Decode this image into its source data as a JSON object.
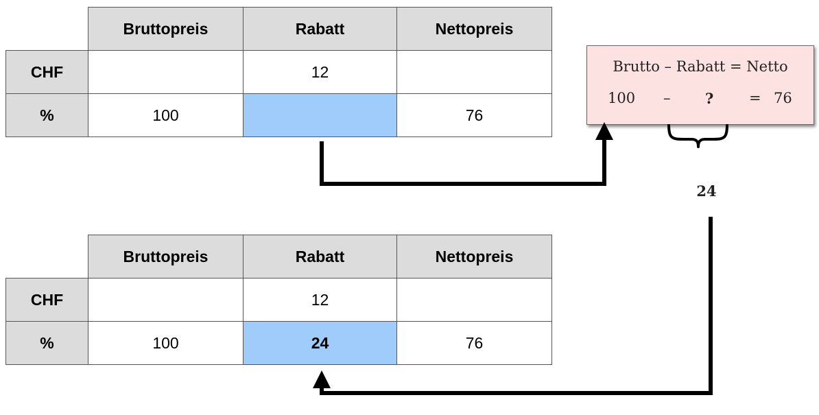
{
  "table_top": {
    "headers": [
      "",
      "Bruttopreis",
      "Rabatt",
      "Nettopreis"
    ],
    "rows": [
      {
        "label": "CHF",
        "cells": [
          "",
          "12",
          ""
        ]
      },
      {
        "label": "%",
        "cells": [
          "100",
          "",
          "76"
        ]
      }
    ]
  },
  "table_bottom": {
    "headers": [
      "",
      "Bruttopreis",
      "Rabatt",
      "Nettopreis"
    ],
    "rows": [
      {
        "label": "CHF",
        "cells": [
          "",
          "12",
          ""
        ]
      },
      {
        "label": "%",
        "cells": [
          "100",
          "24",
          "76"
        ]
      }
    ]
  },
  "formula": {
    "line1": "Brutto – Rabatt = Netto",
    "brutto": "100",
    "minus": "–",
    "unknown": "?",
    "equals": "=",
    "netto": "76"
  },
  "result": "24",
  "colors": {
    "header_bg": "#dcdcdc",
    "highlight_blue": "#9fccfb",
    "formula_bg": "#fde2e2",
    "arrow": "#000000"
  }
}
